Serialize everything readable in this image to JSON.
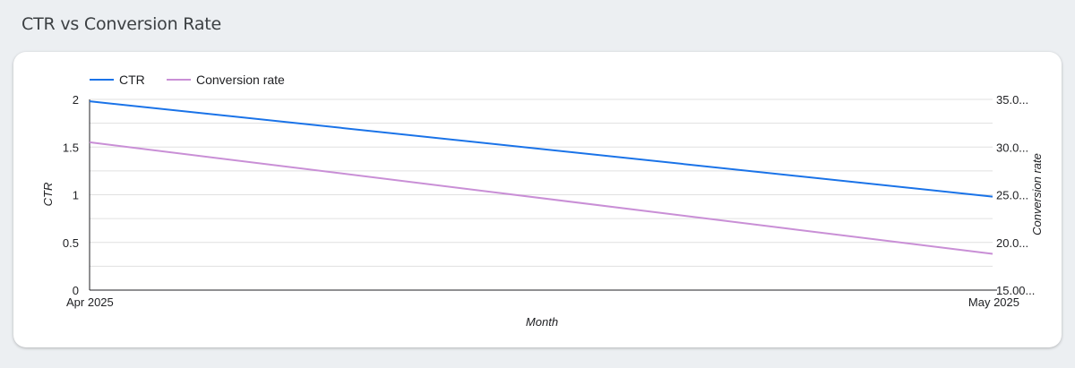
{
  "header": {
    "title": "CTR vs Conversion Rate"
  },
  "chart_data": {
    "type": "line",
    "title": "CTR vs Conversion Rate",
    "xlabel": "Month",
    "ylabel_left": "CTR",
    "ylabel_right": "Conversion rate",
    "categories": [
      "Apr 2025",
      "May 2025"
    ],
    "left_axis": {
      "range": [
        0,
        2
      ],
      "ticks": [
        "0",
        "0.5",
        "1",
        "1.5",
        "2"
      ],
      "tick_values": [
        0,
        0.5,
        1,
        1.5,
        2
      ]
    },
    "right_axis": {
      "range": [
        15,
        35
      ],
      "ticks": [
        "15.00...",
        "20.0...",
        "25.0...",
        "30.0...",
        "35.0..."
      ],
      "tick_values": [
        15,
        20,
        25,
        30,
        35
      ]
    },
    "grid": true,
    "legend_position": "top-left",
    "series": [
      {
        "name": "CTR",
        "axis": "left",
        "color": "#1a73e8",
        "values": [
          1.98,
          0.98
        ]
      },
      {
        "name": "Conversion rate",
        "axis": "right",
        "color": "#c98fd6",
        "values": [
          30.5,
          18.8
        ]
      }
    ]
  }
}
